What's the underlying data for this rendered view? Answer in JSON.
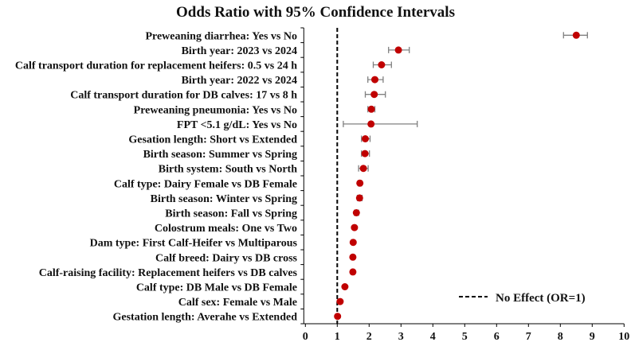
{
  "chart_data": {
    "type": "forest",
    "title": "Odds Ratio with 95% Confidence Intervals",
    "xlabel": "",
    "ylabel": "",
    "xlim": [
      0,
      10
    ],
    "xticks": [
      0,
      1,
      2,
      3,
      4,
      5,
      6,
      7,
      8,
      9,
      10
    ],
    "grid": false,
    "reference_line": {
      "value": 1,
      "label": "No Effect (OR=1)",
      "style": "dashed"
    },
    "legend_placement": "bottom-right",
    "colors": {
      "point": "#c00000",
      "ci": "#808080",
      "reference": "#000000"
    },
    "rows": [
      {
        "label": "Preweaning diarrhea: Yes vs No",
        "or": 8.5,
        "lo": 8.1,
        "hi": 8.85
      },
      {
        "label": "Birth year: 2023 vs 2024",
        "or": 2.92,
        "lo": 2.61,
        "hi": 3.26
      },
      {
        "label": "Calf transport duration for replacement heifers: 0.5 vs 24 h",
        "or": 2.39,
        "lo": 2.13,
        "hi": 2.7
      },
      {
        "label": "Birth year: 2022 vs 2024",
        "or": 2.18,
        "lo": 1.96,
        "hi": 2.44
      },
      {
        "label": "Calf transport duration for DB calves: 17 vs 8 h",
        "or": 2.16,
        "lo": 1.88,
        "hi": 2.51
      },
      {
        "label": "Preweaning pneumonia: Yes vs No",
        "or": 2.07,
        "lo": 1.96,
        "hi": 2.18
      },
      {
        "label": "FPT <5.1 g/dL: Yes vs No",
        "or": 2.06,
        "lo": 1.19,
        "hi": 3.51
      },
      {
        "label": "Gesation length: Short vs Extended",
        "or": 1.88,
        "lo": 1.76,
        "hi": 2.03
      },
      {
        "label": "Birth season: Summer vs Spring",
        "or": 1.87,
        "lo": 1.76,
        "hi": 2.01
      },
      {
        "label": "Birth system: South vs North",
        "or": 1.82,
        "lo": 1.67,
        "hi": 1.97
      },
      {
        "label": "Calf type: Dairy Female vs DB Female",
        "or": 1.71,
        "lo": 1.66,
        "hi": 1.76
      },
      {
        "label": "Birth season: Winter vs Spring",
        "or": 1.7,
        "lo": 1.63,
        "hi": 1.78
      },
      {
        "label": "Birth season: Fall vs Spring",
        "or": 1.6,
        "lo": 1.54,
        "hi": 1.67
      },
      {
        "label": "Colostrum meals: One vs Two",
        "or": 1.54,
        "lo": 1.5,
        "hi": 1.58
      },
      {
        "label": "Dam type: First Calf-Heifer vs Multiparous",
        "or": 1.5,
        "lo": 1.46,
        "hi": 1.54
      },
      {
        "label": "Calf breed: Dairy vs DB cross",
        "or": 1.49,
        "lo": 1.45,
        "hi": 1.53
      },
      {
        "label": "Calf-raising facility: Replacement heifers vs DB calves",
        "or": 1.49,
        "lo": 1.45,
        "hi": 1.53
      },
      {
        "label": "Calf type: DB Male vs DB Female",
        "or": 1.24,
        "lo": 1.2,
        "hi": 1.28
      },
      {
        "label": "Calf sex: Female vs Male",
        "or": 1.09,
        "lo": 1.06,
        "hi": 1.12
      },
      {
        "label": "Gestation length: Averahe vs Extended",
        "or": 1.01,
        "lo": 0.98,
        "hi": 1.04
      }
    ]
  }
}
